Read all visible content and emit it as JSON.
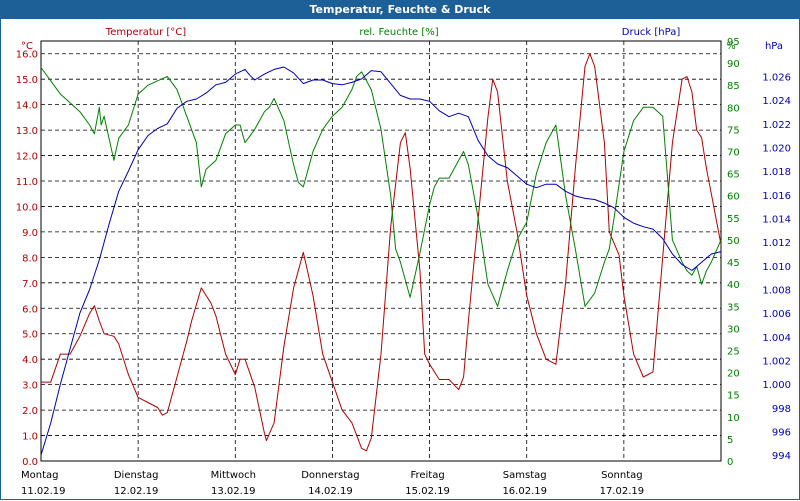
{
  "window": {
    "title": "Temperatur, Feuchte & Druck"
  },
  "chart_data": {
    "type": "line",
    "title": "Temperatur, Feuchte & Druck",
    "x_days": [
      {
        "day": "Montag",
        "date": "11.02.19"
      },
      {
        "day": "Dienstag",
        "date": "12.02.19"
      },
      {
        "day": "Mittwoch",
        "date": "13.02.19"
      },
      {
        "day": "Donnerstag",
        "date": "14.02.19"
      },
      {
        "day": "Freitag",
        "date": "15.02.19"
      },
      {
        "day": "Samstag",
        "date": "16.02.19"
      },
      {
        "day": "Sonntag",
        "date": "17.02.19"
      }
    ],
    "x_range": [
      0,
      7
    ],
    "grid": true,
    "axes": {
      "temperature": {
        "unit_label": "°C",
        "color": "#b00000",
        "ylim": [
          0,
          16.5
        ],
        "ticks": [
          "0.0",
          "1.0",
          "2.0",
          "3.0",
          "4.0",
          "5.0",
          "6.0",
          "7.0",
          "8.0",
          "9.0",
          "10.0",
          "11.0",
          "12.0",
          "13.0",
          "14.0",
          "15.0",
          "16.0"
        ]
      },
      "humidity": {
        "unit_label": "%",
        "color": "#008000",
        "ylim": [
          0,
          95
        ],
        "ticks": [
          "0",
          "5",
          "10",
          "15",
          "20",
          "25",
          "30",
          "35",
          "40",
          "45",
          "50",
          "55",
          "60",
          "65",
          "70",
          "75",
          "80",
          "85",
          "90",
          "95"
        ]
      },
      "pressure": {
        "unit_label": "hPa",
        "color": "#0000b0",
        "ylim": [
          993.5,
          1029
        ],
        "ticks": [
          "994",
          "996",
          "998",
          "1.000",
          "1.002",
          "1.004",
          "1.006",
          "1.008",
          "1.010",
          "1.012",
          "1.014",
          "1.016",
          "1.018",
          "1.020",
          "1.022",
          "1.024",
          "1.026"
        ]
      }
    },
    "series": [
      {
        "name": "Temperatur [°C]",
        "axis": "temperature",
        "color": "#b00000",
        "points": [
          [
            0,
            3.1
          ],
          [
            0.1,
            3.1
          ],
          [
            0.2,
            4.2
          ],
          [
            0.3,
            4.2
          ],
          [
            0.4,
            4.9
          ],
          [
            0.5,
            5.8
          ],
          [
            0.55,
            6.1
          ],
          [
            0.6,
            5.5
          ],
          [
            0.65,
            5.0
          ],
          [
            0.75,
            4.9
          ],
          [
            0.8,
            4.6
          ],
          [
            0.9,
            3.4
          ],
          [
            1.0,
            2.5
          ],
          [
            1.1,
            2.3
          ],
          [
            1.2,
            2.1
          ],
          [
            1.25,
            1.8
          ],
          [
            1.3,
            1.9
          ],
          [
            1.4,
            3.3
          ],
          [
            1.5,
            4.7
          ],
          [
            1.55,
            5.5
          ],
          [
            1.65,
            6.8
          ],
          [
            1.75,
            6.2
          ],
          [
            1.8,
            5.7
          ],
          [
            1.9,
            4.2
          ],
          [
            2.0,
            3.4
          ],
          [
            2.05,
            4.0
          ],
          [
            2.1,
            4.0
          ],
          [
            2.2,
            2.9
          ],
          [
            2.3,
            1.1
          ],
          [
            2.32,
            0.8
          ],
          [
            2.4,
            1.5
          ],
          [
            2.5,
            4.5
          ],
          [
            2.6,
            6.8
          ],
          [
            2.7,
            8.2
          ],
          [
            2.8,
            6.5
          ],
          [
            2.9,
            4.2
          ],
          [
            3.0,
            3.1
          ],
          [
            3.1,
            2.0
          ],
          [
            3.2,
            1.5
          ],
          [
            3.3,
            0.5
          ],
          [
            3.35,
            0.4
          ],
          [
            3.4,
            0.9
          ],
          [
            3.5,
            4.2
          ],
          [
            3.6,
            9.2
          ],
          [
            3.7,
            12.5
          ],
          [
            3.75,
            12.9
          ],
          [
            3.8,
            11.5
          ],
          [
            3.9,
            7.5
          ],
          [
            3.95,
            4.2
          ],
          [
            4.0,
            3.8
          ],
          [
            4.1,
            3.2
          ],
          [
            4.2,
            3.2
          ],
          [
            4.3,
            2.8
          ],
          [
            4.35,
            3.3
          ],
          [
            4.4,
            5.5
          ],
          [
            4.5,
            9.5
          ],
          [
            4.6,
            13.5
          ],
          [
            4.65,
            15.0
          ],
          [
            4.7,
            14.5
          ],
          [
            4.8,
            11.0
          ],
          [
            4.9,
            9.0
          ],
          [
            5.0,
            6.5
          ],
          [
            5.1,
            5.0
          ],
          [
            5.2,
            4.0
          ],
          [
            5.3,
            3.8
          ],
          [
            5.4,
            7.0
          ],
          [
            5.5,
            11.5
          ],
          [
            5.6,
            15.5
          ],
          [
            5.65,
            16.0
          ],
          [
            5.7,
            15.5
          ],
          [
            5.8,
            12.5
          ],
          [
            5.85,
            9.0
          ],
          [
            5.95,
            8.1
          ],
          [
            6.0,
            6.5
          ],
          [
            6.1,
            4.2
          ],
          [
            6.2,
            3.3
          ],
          [
            6.25,
            3.4
          ],
          [
            6.3,
            3.5
          ],
          [
            6.4,
            8.0
          ],
          [
            6.5,
            12.5
          ],
          [
            6.6,
            15.0
          ],
          [
            6.65,
            15.1
          ],
          [
            6.7,
            14.5
          ],
          [
            6.75,
            13.0
          ],
          [
            6.8,
            12.7
          ],
          [
            6.85,
            11.5
          ],
          [
            6.9,
            10.5
          ],
          [
            7.0,
            8.5
          ]
        ]
      },
      {
        "name": "rel. Feuchte [%]",
        "axis": "humidity",
        "color": "#008000",
        "points": [
          [
            0,
            89
          ],
          [
            0.1,
            86
          ],
          [
            0.2,
            83
          ],
          [
            0.3,
            81
          ],
          [
            0.4,
            79
          ],
          [
            0.5,
            76
          ],
          [
            0.55,
            74
          ],
          [
            0.6,
            80
          ],
          [
            0.62,
            76
          ],
          [
            0.65,
            78
          ],
          [
            0.7,
            73
          ],
          [
            0.75,
            68
          ],
          [
            0.8,
            73
          ],
          [
            0.9,
            76
          ],
          [
            1.0,
            83
          ],
          [
            1.1,
            85
          ],
          [
            1.2,
            86
          ],
          [
            1.3,
            87
          ],
          [
            1.4,
            84
          ],
          [
            1.5,
            78
          ],
          [
            1.6,
            72
          ],
          [
            1.65,
            62
          ],
          [
            1.7,
            66
          ],
          [
            1.8,
            68
          ],
          [
            1.9,
            74
          ],
          [
            2.0,
            76
          ],
          [
            2.05,
            76
          ],
          [
            2.1,
            72
          ],
          [
            2.2,
            75
          ],
          [
            2.3,
            79
          ],
          [
            2.35,
            80
          ],
          [
            2.4,
            82
          ],
          [
            2.5,
            77
          ],
          [
            2.55,
            72
          ],
          [
            2.6,
            67
          ],
          [
            2.65,
            63
          ],
          [
            2.7,
            62
          ],
          [
            2.8,
            70
          ],
          [
            2.9,
            75
          ],
          [
            3.0,
            78
          ],
          [
            3.1,
            80
          ],
          [
            3.2,
            84
          ],
          [
            3.25,
            87
          ],
          [
            3.3,
            88
          ],
          [
            3.4,
            84
          ],
          [
            3.5,
            75
          ],
          [
            3.6,
            60
          ],
          [
            3.65,
            48
          ],
          [
            3.7,
            45
          ],
          [
            3.8,
            37
          ],
          [
            3.9,
            47
          ],
          [
            4.0,
            58
          ],
          [
            4.05,
            62
          ],
          [
            4.1,
            64
          ],
          [
            4.2,
            64
          ],
          [
            4.3,
            68
          ],
          [
            4.35,
            70
          ],
          [
            4.4,
            67
          ],
          [
            4.5,
            55
          ],
          [
            4.6,
            40
          ],
          [
            4.7,
            35
          ],
          [
            4.8,
            43
          ],
          [
            4.9,
            50
          ],
          [
            5.0,
            54
          ],
          [
            5.1,
            65
          ],
          [
            5.2,
            72
          ],
          [
            5.3,
            76
          ],
          [
            5.4,
            60
          ],
          [
            5.5,
            48
          ],
          [
            5.6,
            35
          ],
          [
            5.7,
            38
          ],
          [
            5.8,
            45
          ],
          [
            5.85,
            48
          ],
          [
            5.9,
            55
          ],
          [
            6.0,
            70
          ],
          [
            6.1,
            77
          ],
          [
            6.2,
            80
          ],
          [
            6.3,
            80
          ],
          [
            6.4,
            78
          ],
          [
            6.5,
            50
          ],
          [
            6.6,
            45
          ],
          [
            6.65,
            43
          ],
          [
            6.7,
            42
          ],
          [
            6.75,
            44
          ],
          [
            6.8,
            40
          ],
          [
            6.85,
            43
          ],
          [
            6.9,
            45
          ],
          [
            7.0,
            50
          ]
        ]
      },
      {
        "name": "Druck [hPa]",
        "axis": "pressure",
        "color": "#0000b0",
        "points": [
          [
            0,
            994.0
          ],
          [
            0.1,
            996.7
          ],
          [
            0.2,
            1000.0
          ],
          [
            0.3,
            1003.0
          ],
          [
            0.4,
            1006.0
          ],
          [
            0.5,
            1008.0
          ],
          [
            0.6,
            1010.5
          ],
          [
            0.7,
            1013.5
          ],
          [
            0.8,
            1016.3
          ],
          [
            0.9,
            1018.0
          ],
          [
            1.0,
            1019.8
          ],
          [
            1.1,
            1021.0
          ],
          [
            1.2,
            1021.6
          ],
          [
            1.3,
            1022.0
          ],
          [
            1.4,
            1023.3
          ],
          [
            1.5,
            1023.9
          ],
          [
            1.6,
            1024.1
          ],
          [
            1.7,
            1024.6
          ],
          [
            1.8,
            1025.3
          ],
          [
            1.9,
            1025.5
          ],
          [
            2.0,
            1026.2
          ],
          [
            2.1,
            1026.6
          ],
          [
            2.15,
            1026.1
          ],
          [
            2.2,
            1025.7
          ],
          [
            2.3,
            1026.2
          ],
          [
            2.4,
            1026.6
          ],
          [
            2.5,
            1026.8
          ],
          [
            2.6,
            1026.3
          ],
          [
            2.7,
            1025.4
          ],
          [
            2.8,
            1025.7
          ],
          [
            2.9,
            1025.7
          ],
          [
            3.0,
            1025.4
          ],
          [
            3.1,
            1025.3
          ],
          [
            3.2,
            1025.5
          ],
          [
            3.3,
            1025.8
          ],
          [
            3.4,
            1026.5
          ],
          [
            3.5,
            1026.4
          ],
          [
            3.6,
            1025.4
          ],
          [
            3.7,
            1024.4
          ],
          [
            3.8,
            1024.1
          ],
          [
            3.9,
            1024.1
          ],
          [
            4.0,
            1023.9
          ],
          [
            4.1,
            1023.1
          ],
          [
            4.2,
            1022.6
          ],
          [
            4.3,
            1022.9
          ],
          [
            4.4,
            1022.6
          ],
          [
            4.5,
            1020.6
          ],
          [
            4.6,
            1019.3
          ],
          [
            4.7,
            1018.6
          ],
          [
            4.8,
            1018.3
          ],
          [
            4.9,
            1017.6
          ],
          [
            5.0,
            1016.9
          ],
          [
            5.1,
            1016.6
          ],
          [
            5.2,
            1016.9
          ],
          [
            5.3,
            1016.9
          ],
          [
            5.4,
            1016.3
          ],
          [
            5.5,
            1015.9
          ],
          [
            5.6,
            1015.7
          ],
          [
            5.7,
            1015.6
          ],
          [
            5.8,
            1015.3
          ],
          [
            5.9,
            1014.9
          ],
          [
            6.0,
            1014.1
          ],
          [
            6.1,
            1013.6
          ],
          [
            6.2,
            1013.3
          ],
          [
            6.3,
            1013.1
          ],
          [
            6.4,
            1012.3
          ],
          [
            6.5,
            1011.0
          ],
          [
            6.6,
            1010.1
          ],
          [
            6.7,
            1009.6
          ],
          [
            6.8,
            1010.3
          ],
          [
            6.9,
            1011.0
          ],
          [
            7.0,
            1011.2
          ]
        ]
      }
    ]
  }
}
